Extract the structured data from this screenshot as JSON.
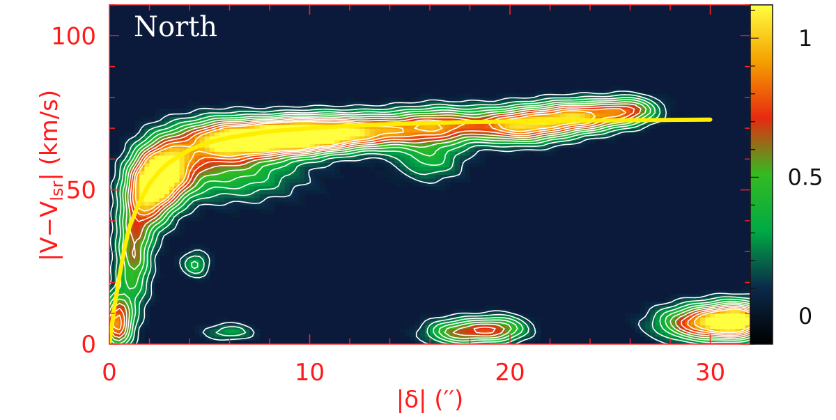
{
  "chart_data": {
    "type": "heatmap",
    "panel_label": "North",
    "xlabel": "|δ| (′′)",
    "ylabel_parts": [
      "|V−V",
      "lsr",
      "| (km/s)"
    ],
    "xlim": [
      0,
      32
    ],
    "ylim": [
      0,
      110
    ],
    "x_ticks": [
      0,
      10,
      20,
      30
    ],
    "y_ticks": [
      0,
      50,
      100
    ],
    "colorbar": {
      "ticks": [
        0,
        0.5,
        1
      ],
      "tick_labels": [
        "0",
        "0.5",
        "1"
      ],
      "range": [
        -0.1,
        1.12
      ],
      "colors": [
        "#000000",
        "#0b2a4a",
        "#00aa44",
        "#33bb22",
        "#e82a10",
        "#f5a000",
        "#ffff40"
      ]
    },
    "background_color": "#0b1a3a",
    "fit_curve": {
      "color": "#ffee00",
      "x": [
        0,
        0.25,
        0.5,
        0.75,
        1,
        1.5,
        2,
        2.5,
        3,
        4,
        5,
        6,
        7,
        8,
        10,
        12,
        14,
        16,
        18,
        20,
        22,
        24,
        26,
        28,
        30
      ],
      "y": [
        0,
        12,
        22,
        31,
        38,
        46,
        52,
        56,
        59,
        63,
        65.5,
        67,
        68,
        69,
        70,
        70.8,
        71.3,
        71.7,
        72,
        72.2,
        72.4,
        72.5,
        72.6,
        72.7,
        72.8
      ]
    },
    "emission_components": [
      {
        "x": 0.4,
        "y": 7,
        "amp": 0.85,
        "sx": 0.5,
        "sy": 6
      },
      {
        "x": 1.2,
        "y": 30,
        "amp": 0.6,
        "sx": 0.6,
        "sy": 12
      },
      {
        "x": 2.0,
        "y": 50,
        "amp": 0.95,
        "sx": 0.8,
        "sy": 8
      },
      {
        "x": 3.0,
        "y": 57,
        "amp": 0.85,
        "sx": 0.9,
        "sy": 7
      },
      {
        "x": 5.5,
        "y": 66,
        "amp": 0.95,
        "sx": 1.5,
        "sy": 5
      },
      {
        "x": 8.0,
        "y": 67,
        "amp": 0.85,
        "sx": 1.5,
        "sy": 4
      },
      {
        "x": 10.0,
        "y": 68,
        "amp": 1.05,
        "sx": 1.6,
        "sy": 4
      },
      {
        "x": 13.0,
        "y": 69,
        "amp": 0.8,
        "sx": 1.8,
        "sy": 4
      },
      {
        "x": 16.5,
        "y": 71,
        "amp": 0.75,
        "sx": 1.6,
        "sy": 4
      },
      {
        "x": 20.5,
        "y": 71,
        "amp": 0.95,
        "sx": 1.6,
        "sy": 4
      },
      {
        "x": 23.5,
        "y": 74,
        "amp": 0.9,
        "sx": 1.5,
        "sy": 3.5
      },
      {
        "x": 26.0,
        "y": 76,
        "amp": 0.6,
        "sx": 1.0,
        "sy": 3
      },
      {
        "x": 6.0,
        "y": 55,
        "amp": 0.4,
        "sx": 2.5,
        "sy": 6
      },
      {
        "x": 16.0,
        "y": 60,
        "amp": 0.35,
        "sx": 1.2,
        "sy": 5
      },
      {
        "x": 17.5,
        "y": 4,
        "amp": 0.6,
        "sx": 1.2,
        "sy": 3
      },
      {
        "x": 19.5,
        "y": 5,
        "amp": 0.55,
        "sx": 1.0,
        "sy": 3
      },
      {
        "x": 6.0,
        "y": 4,
        "amp": 0.3,
        "sx": 0.9,
        "sy": 2
      },
      {
        "x": 29.8,
        "y": 7,
        "amp": 0.95,
        "sx": 1.6,
        "sy": 4
      },
      {
        "x": 31.5,
        "y": 8,
        "amp": 0.8,
        "sx": 1.0,
        "sy": 4
      },
      {
        "x": 4.3,
        "y": 26,
        "amp": 0.35,
        "sx": 0.5,
        "sy": 3
      }
    ]
  }
}
